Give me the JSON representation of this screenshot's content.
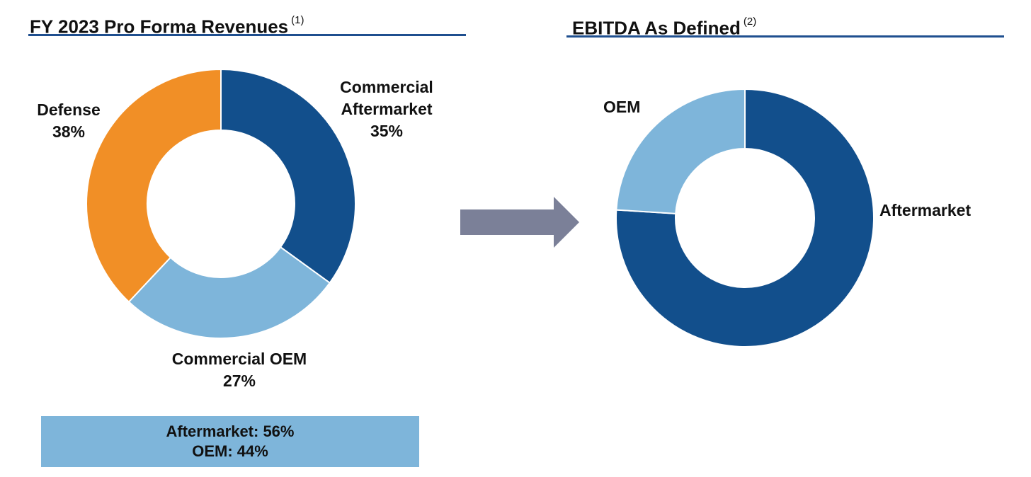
{
  "left_panel": {
    "title": "FY 2023 Pro Forma Revenues",
    "footnote": "(1)",
    "summary": {
      "line1": "Aftermarket: 56%",
      "line2": "OEM: 44%"
    }
  },
  "right_panel": {
    "title": "EBITDA As Defined",
    "footnote": "(2)"
  },
  "chart_data": [
    {
      "type": "pie",
      "subtype": "donut",
      "title": "FY 2023 Pro Forma Revenues",
      "categories": [
        "Commercial Aftermarket",
        "Commercial OEM",
        "Defense"
      ],
      "values": [
        35,
        27,
        38
      ],
      "labels": [
        {
          "line1": "Commercial",
          "line2": "Aftermarket",
          "value": "35%"
        },
        {
          "line1": "Commercial OEM",
          "value": "27%"
        },
        {
          "line1": "Defense",
          "value": "38%"
        }
      ],
      "colors": [
        "#124f8c",
        "#7eb5da",
        "#f18f26"
      ]
    },
    {
      "type": "pie",
      "subtype": "donut",
      "title": "EBITDA As Defined",
      "categories": [
        "Aftermarket",
        "OEM"
      ],
      "values": [
        76,
        24
      ],
      "labels": [
        {
          "line1": "Aftermarket"
        },
        {
          "line1": "OEM"
        }
      ],
      "colors": [
        "#124f8c",
        "#7eb5da"
      ]
    }
  ],
  "arrow_color": "#7b8098"
}
